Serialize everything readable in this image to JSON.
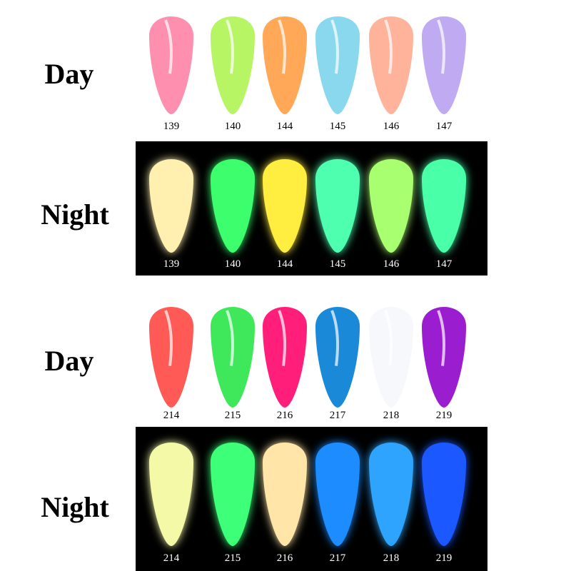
{
  "sections": [
    {
      "label": "Day",
      "codes": [
        "139",
        "140",
        "144",
        "145",
        "146",
        "147"
      ]
    },
    {
      "label": "Night",
      "codes": [
        "139",
        "140",
        "144",
        "145",
        "146",
        "147"
      ]
    },
    {
      "label": "Day",
      "codes": [
        "214",
        "215",
        "216",
        "217",
        "218",
        "219"
      ]
    },
    {
      "label": "Night",
      "codes": [
        "214",
        "215",
        "216",
        "217",
        "218",
        "219"
      ]
    }
  ]
}
